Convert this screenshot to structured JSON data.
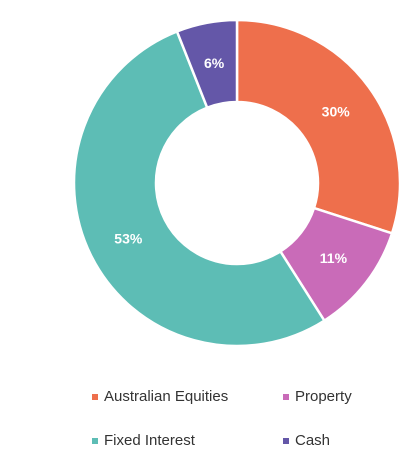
{
  "chart_data": {
    "type": "pie",
    "donut": true,
    "categories": [
      "Australian Equities",
      "Property",
      "Fixed Interest",
      "Cash"
    ],
    "values": [
      30,
      11,
      53,
      6
    ],
    "data_labels": [
      "30%",
      "11%",
      "53%",
      "6%"
    ],
    "colors": [
      "#EE6F4C",
      "#C96BB8",
      "#5DBDB5",
      "#6457A8"
    ],
    "legend": {
      "placement": "bottom",
      "entries": [
        {
          "label": "Australian Equities",
          "color": "#EE6F4C"
        },
        {
          "label": "Property",
          "color": "#C96BB8"
        },
        {
          "label": "Fixed Interest",
          "color": "#5DBDB5"
        },
        {
          "label": "Cash",
          "color": "#6457A8"
        }
      ]
    }
  }
}
